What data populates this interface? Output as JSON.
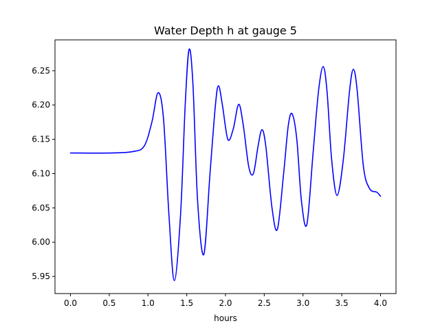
{
  "chart_data": {
    "type": "line",
    "title": "Water Depth h at gauge 5",
    "xlabel": "hours",
    "ylabel": "",
    "xlim": [
      -0.2,
      4.2
    ],
    "ylim": [
      5.925,
      6.295
    ],
    "grid": false,
    "x_ticks": [
      0.0,
      0.5,
      1.0,
      1.5,
      2.0,
      2.5,
      3.0,
      3.5,
      4.0
    ],
    "x_tick_labels": [
      "0.0",
      "0.5",
      "1.0",
      "1.5",
      "2.0",
      "2.5",
      "3.0",
      "3.5",
      "4.0"
    ],
    "y_ticks": [
      5.95,
      6.0,
      6.05,
      6.1,
      6.15,
      6.2,
      6.25
    ],
    "y_tick_labels": [
      "5.95",
      "6.00",
      "6.05",
      "6.10",
      "6.15",
      "6.20",
      "6.25"
    ],
    "series": [
      {
        "color": "#0000ff",
        "x": [
          0.0,
          0.5,
          0.8,
          0.95,
          1.05,
          1.13,
          1.2,
          1.27,
          1.34,
          1.42,
          1.48,
          1.53,
          1.58,
          1.64,
          1.72,
          1.8,
          1.87,
          1.91,
          1.96,
          2.03,
          2.1,
          2.17,
          2.23,
          2.3,
          2.36,
          2.42,
          2.47,
          2.52,
          2.6,
          2.67,
          2.75,
          2.81,
          2.86,
          2.92,
          2.98,
          3.05,
          3.13,
          3.2,
          3.26,
          3.31,
          3.37,
          3.44,
          3.52,
          3.6,
          3.65,
          3.7,
          3.78,
          3.86,
          3.95,
          4.0
        ],
        "y": [
          6.13,
          6.13,
          6.132,
          6.14,
          6.175,
          6.218,
          6.18,
          6.04,
          5.944,
          6.04,
          6.2,
          6.281,
          6.23,
          6.06,
          5.982,
          6.1,
          6.2,
          6.228,
          6.2,
          6.15,
          6.165,
          6.201,
          6.17,
          6.11,
          6.1,
          6.14,
          6.164,
          6.14,
          6.05,
          6.019,
          6.1,
          6.17,
          6.187,
          6.15,
          6.06,
          6.026,
          6.13,
          6.22,
          6.256,
          6.22,
          6.12,
          6.068,
          6.12,
          6.22,
          6.252,
          6.22,
          6.11,
          6.078,
          6.073,
          6.067
        ]
      }
    ]
  }
}
